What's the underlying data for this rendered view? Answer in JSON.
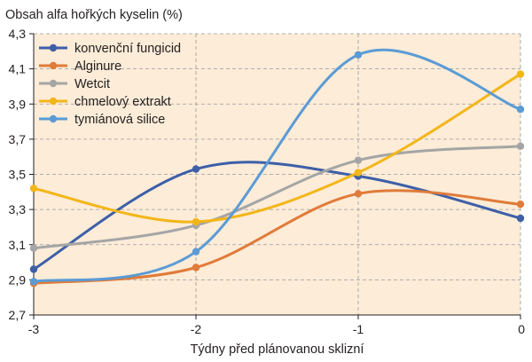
{
  "chart_data": {
    "type": "line",
    "title": "Obsah alfa hořkých kyselin (%)",
    "xlabel": "Týdny před plánovanou sklizní",
    "ylabel": "",
    "x": [
      -3,
      -2,
      -1,
      0
    ],
    "x_tick_labels": [
      "-3",
      "-2",
      "-1",
      "0"
    ],
    "xlim": [
      -3,
      0
    ],
    "ylim": [
      2.7,
      4.3
    ],
    "y_ticks": [
      2.7,
      2.9,
      3.1,
      3.3,
      3.5,
      3.7,
      3.9,
      4.1,
      4.3
    ],
    "y_tick_labels": [
      "2,7",
      "2,9",
      "3,1",
      "3,3",
      "3,5",
      "3,7",
      "3,9",
      "4,1",
      "4,3"
    ],
    "grid": true,
    "legend_position": "top-left",
    "smooth": true,
    "background_color": "#fcecd8",
    "series": [
      {
        "name": "konvenční fungicid",
        "color": "#3d5fa8",
        "values": [
          2.96,
          3.53,
          3.49,
          3.25
        ]
      },
      {
        "name": "Alginure",
        "color": "#e07b39",
        "values": [
          2.88,
          2.97,
          3.39,
          3.33
        ]
      },
      {
        "name": "Wetcit",
        "color": "#a5a5a5",
        "values": [
          3.08,
          3.21,
          3.58,
          3.66
        ]
      },
      {
        "name": "chmelový extrakt",
        "color": "#f3b619",
        "values": [
          3.42,
          3.23,
          3.51,
          4.07
        ]
      },
      {
        "name": "tymiánová silice",
        "color": "#5b9bd5",
        "values": [
          2.89,
          3.06,
          4.18,
          3.87
        ]
      }
    ]
  }
}
